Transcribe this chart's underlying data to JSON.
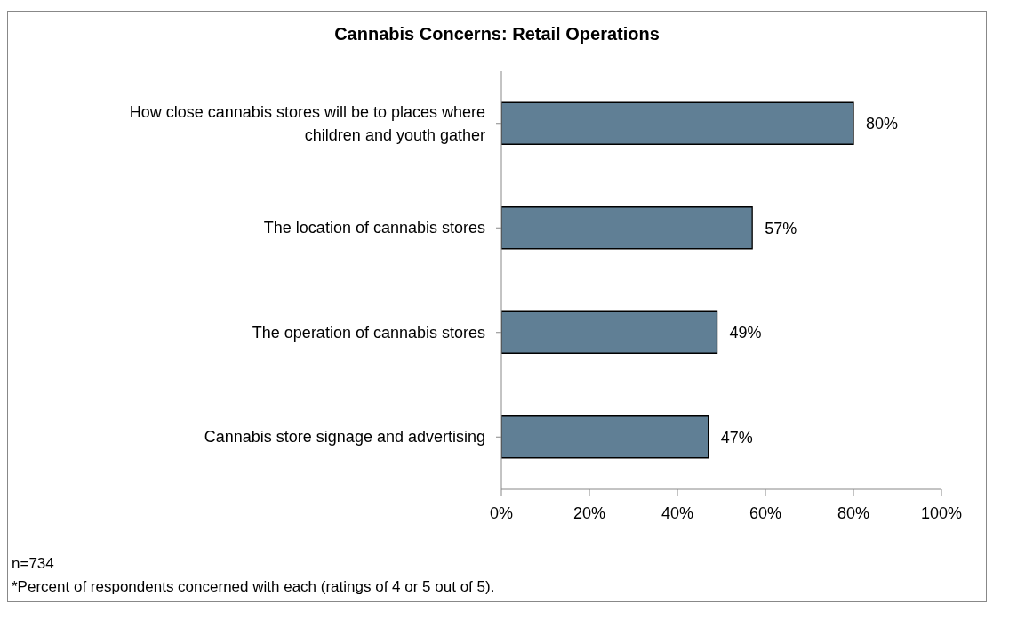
{
  "chart_data": {
    "type": "bar",
    "orientation": "horizontal",
    "title": "Cannabis Concerns: Retail Operations",
    "categories": [
      "How close cannabis stores will be to places where children and youth gather",
      "The location of cannabis stores",
      "The operation of cannabis stores",
      "Cannabis store signage and advertising"
    ],
    "values": [
      80,
      57,
      49,
      47
    ],
    "value_labels": [
      "80%",
      "57%",
      "49%",
      "47%"
    ],
    "color": "#607f95",
    "xlim": [
      0,
      100
    ],
    "xticks": [
      {
        "value": 0,
        "label": "0%"
      },
      {
        "value": 20,
        "label": "20%"
      },
      {
        "value": 40,
        "label": "40%"
      },
      {
        "value": 60,
        "label": "60%"
      },
      {
        "value": 80,
        "label": "80%"
      },
      {
        "value": 100,
        "label": "100%"
      }
    ],
    "grid": false,
    "legend": false,
    "annotations": [
      "n=734",
      "*Percent of respondents concerned with each (ratings of 4 or 5 out of 5)."
    ]
  }
}
